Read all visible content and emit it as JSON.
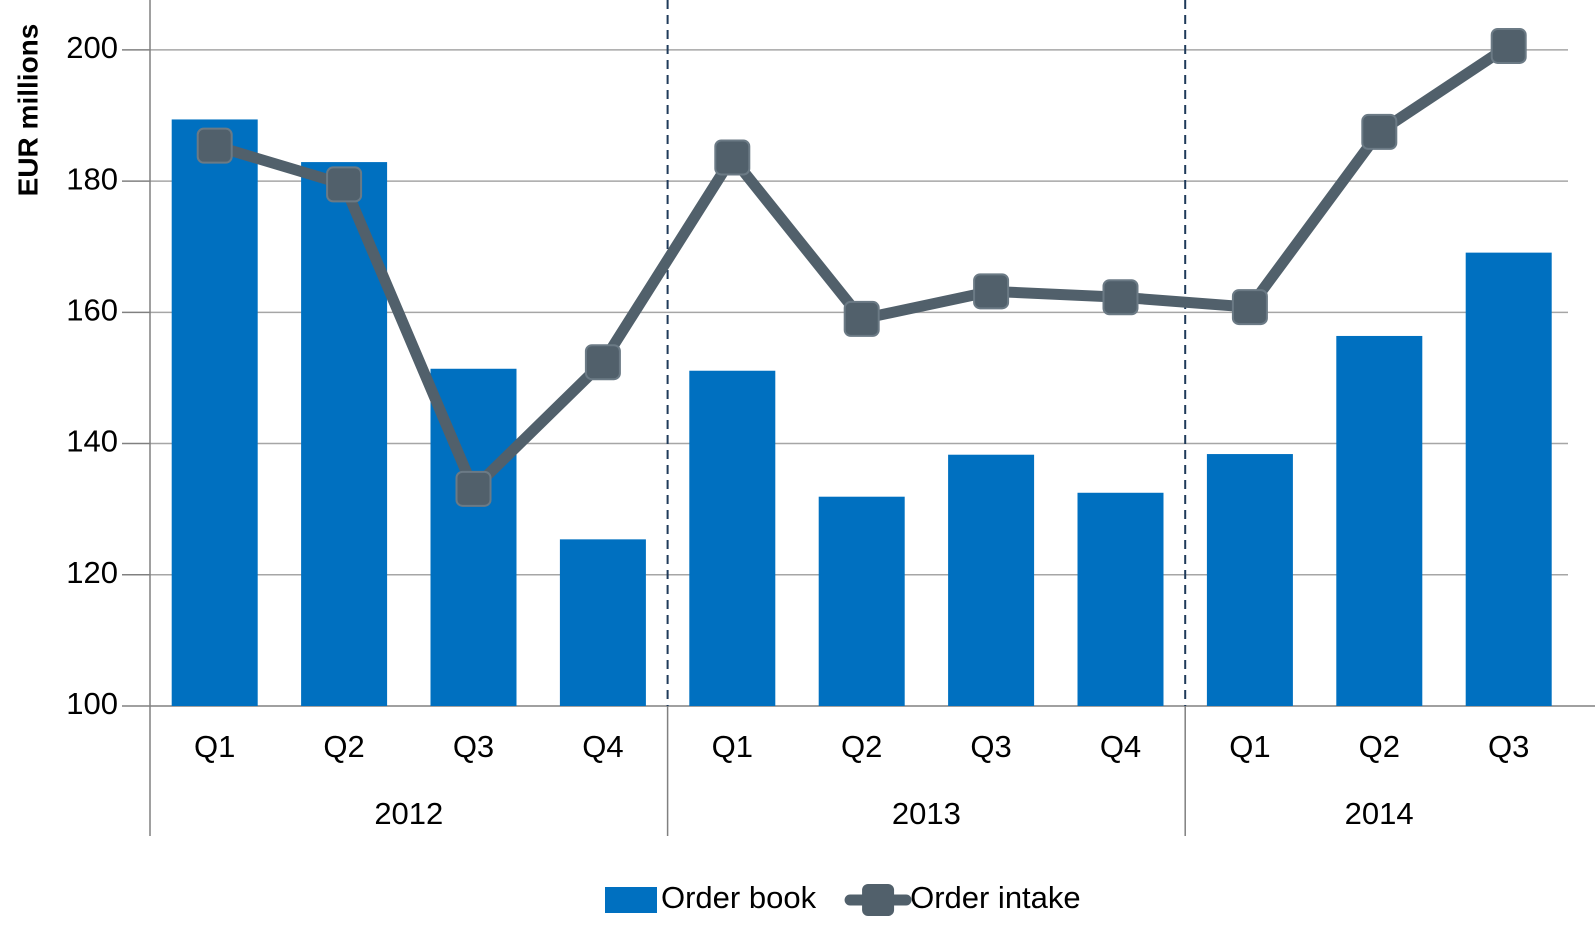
{
  "chart_data": {
    "type": "bar-line",
    "y_label": "EUR millions",
    "groups": [
      {
        "name": "2012",
        "categories": [
          "Q1",
          "Q2",
          "Q3",
          "Q4"
        ]
      },
      {
        "name": "2013",
        "categories": [
          "Q1",
          "Q2",
          "Q3",
          "Q4"
        ]
      },
      {
        "name": "2014",
        "categories": [
          "Q1",
          "Q2",
          "Q3"
        ]
      }
    ],
    "series": [
      {
        "name": "Order book",
        "type": "bar",
        "color": "#0070c0",
        "values": [
          189.4,
          182.9,
          151.4,
          125.4,
          151.1,
          131.9,
          138.3,
          132.5,
          138.4,
          156.4,
          169.1
        ]
      },
      {
        "name": "Order intake",
        "type": "line",
        "color": "#51606b",
        "values": [
          185.4,
          179.5,
          133.1,
          152.4,
          183.6,
          159.0,
          163.2,
          162.3,
          160.8,
          187.5,
          200.6
        ]
      }
    ],
    "ylim": [
      100,
      207.3
    ],
    "yticks": [
      100,
      120,
      140,
      160,
      180,
      200
    ],
    "grid": true,
    "legend": "bottom"
  }
}
